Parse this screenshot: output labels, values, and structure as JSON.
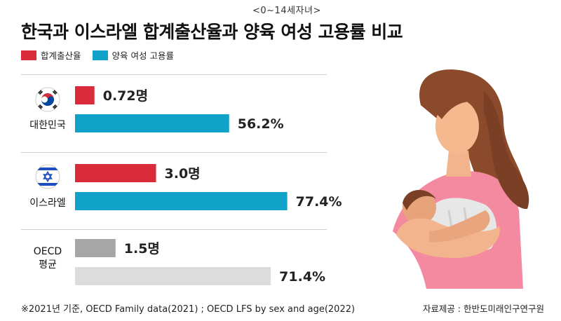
{
  "subtitle": "<0~14세자녀>",
  "title": "한국과 이스라엘 합계출산율과 양육 여성 고용률 비교",
  "legend": [
    {
      "label": "합계출산율",
      "color": "#d92b3a"
    },
    {
      "label": "양육 여성 고용률",
      "color": "#11a2c9"
    }
  ],
  "groups": [
    {
      "label": "대한민국",
      "icon": "south-korea-flag-icon"
    },
    {
      "label": "이스라엘",
      "icon": "israel-flag-icon"
    },
    {
      "label": "OECD\n평균",
      "icon": ""
    }
  ],
  "chart_data": {
    "type": "bar",
    "orientation": "horizontal",
    "title": "한국과 이스라엘 합계출산율과 양육 여성 고용률 비교",
    "subtitle": "<0~14세자녀>",
    "categories": [
      "대한민국",
      "이스라엘",
      "OECD 평균"
    ],
    "series": [
      {
        "name": "합계출산율",
        "values": [
          0.72,
          3.0,
          1.5
        ],
        "labels": [
          "0.72명",
          "3.0명",
          "1.5명"
        ],
        "colors": [
          "#d92b3a",
          "#d92b3a",
          "#a6a6a6"
        ]
      },
      {
        "name": "양육 여성 고용률",
        "values": [
          56.2,
          77.4,
          71.4
        ],
        "labels": [
          "56.2%",
          "77.4%",
          "71.4%"
        ],
        "colors": [
          "#11a2c9",
          "#11a2c9",
          "#dcdcdc"
        ]
      }
    ]
  },
  "footnote": "※2021년 기준, OECD Family data(2021) ; OECD LFS by sex and age(2022)",
  "source": "자료제공 : 한반도미래인구연구원",
  "illustration": "mother-holding-baby-illustration"
}
